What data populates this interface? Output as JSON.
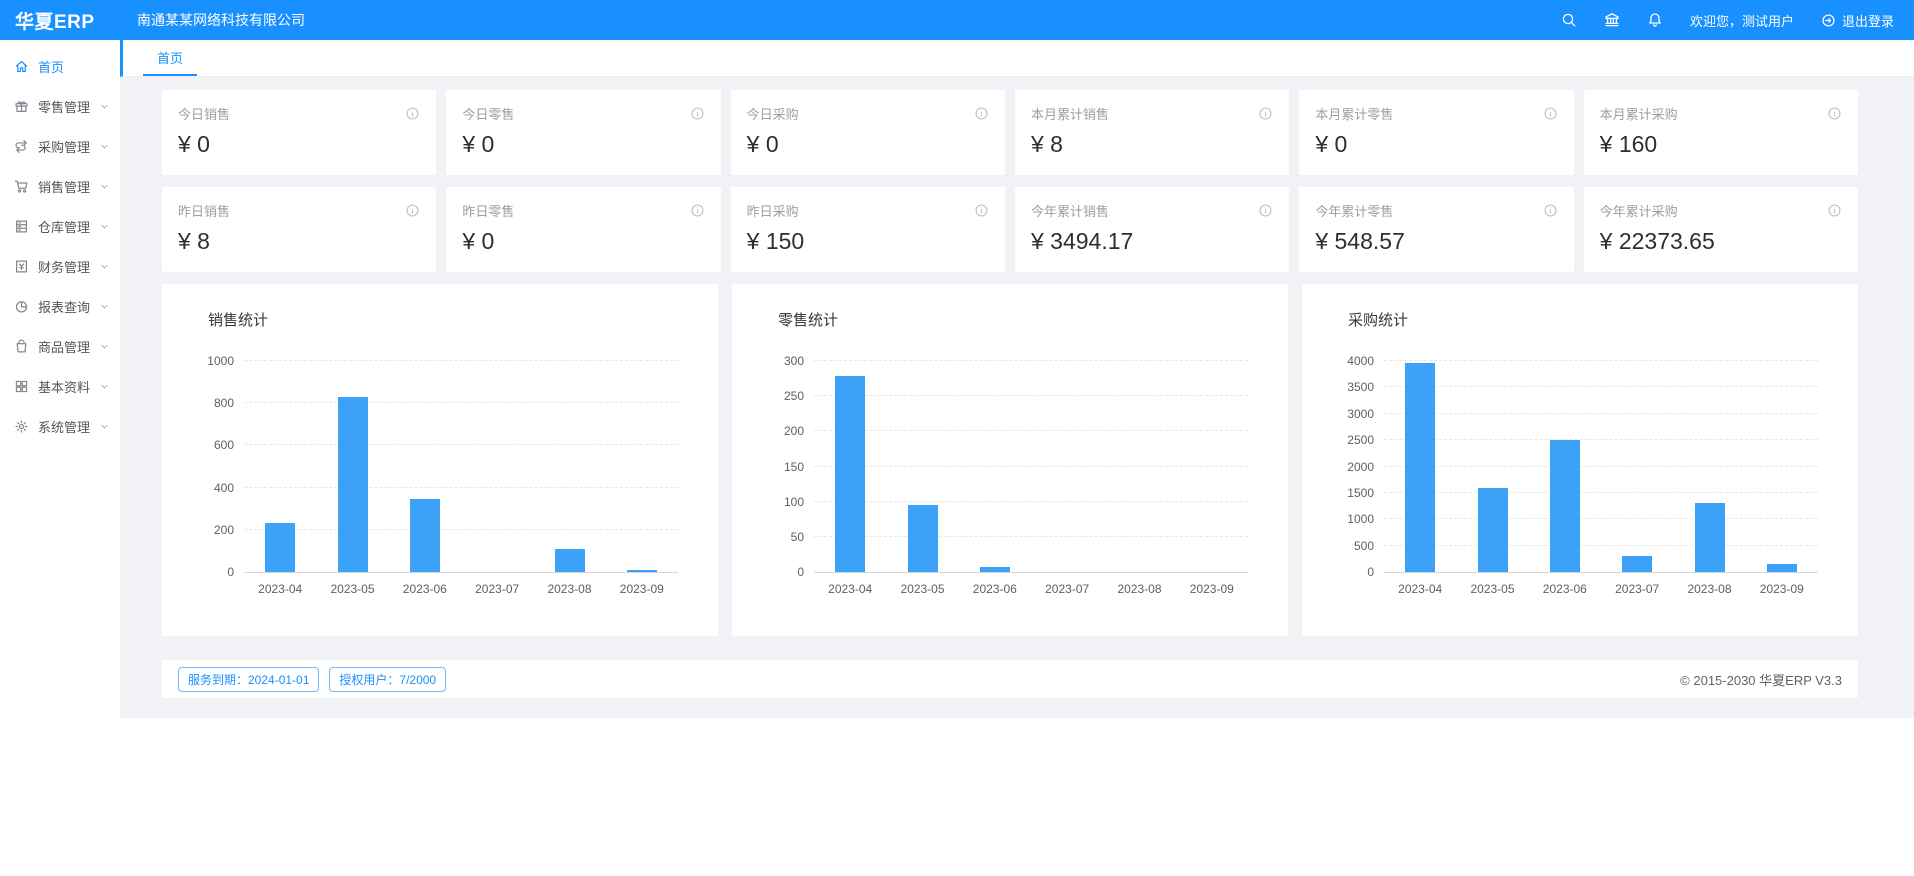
{
  "colors": {
    "primary": "#1890ff",
    "bar": "#3ca2f8",
    "background": "#f0f2f5"
  },
  "header": {
    "logo": "华夏ERP",
    "company": "南通某某网络科技有限公司",
    "welcome": "欢迎您，测试用户",
    "logout": "退出登录"
  },
  "sidebar": {
    "items": [
      {
        "id": "home",
        "icon": "home",
        "label": "首页",
        "active": true,
        "chevron": false
      },
      {
        "id": "retail",
        "icon": "gift",
        "label": "零售管理",
        "active": false,
        "chevron": true
      },
      {
        "id": "purchase",
        "icon": "swap",
        "label": "采购管理",
        "active": false,
        "chevron": true
      },
      {
        "id": "sales",
        "icon": "cart",
        "label": "销售管理",
        "active": false,
        "chevron": true
      },
      {
        "id": "warehouse",
        "icon": "warehouse",
        "label": "仓库管理",
        "active": false,
        "chevron": true
      },
      {
        "id": "finance",
        "icon": "finance",
        "label": "财务管理",
        "active": false,
        "chevron": true
      },
      {
        "id": "report",
        "icon": "report",
        "label": "报表查询",
        "active": false,
        "chevron": true
      },
      {
        "id": "goods",
        "icon": "goods",
        "label": "商品管理",
        "active": false,
        "chevron": true
      },
      {
        "id": "basic",
        "icon": "grid",
        "label": "基本资料",
        "active": false,
        "chevron": true
      },
      {
        "id": "system",
        "icon": "gear",
        "label": "系统管理",
        "active": false,
        "chevron": true
      }
    ]
  },
  "tabs": [
    {
      "label": "首页",
      "active": true
    }
  ],
  "stats": {
    "cards": [
      {
        "label": "今日销售",
        "value": "¥ 0"
      },
      {
        "label": "今日零售",
        "value": "¥ 0"
      },
      {
        "label": "今日采购",
        "value": "¥ 0"
      },
      {
        "label": "本月累计销售",
        "value": "¥ 8"
      },
      {
        "label": "本月累计零售",
        "value": "¥ 0"
      },
      {
        "label": "本月累计采购",
        "value": "¥ 160"
      },
      {
        "label": "昨日销售",
        "value": "¥ 8"
      },
      {
        "label": "昨日零售",
        "value": "¥ 0"
      },
      {
        "label": "昨日采购",
        "value": "¥ 150"
      },
      {
        "label": "今年累计销售",
        "value": "¥ 3494.17"
      },
      {
        "label": "今年累计零售",
        "value": "¥ 548.57"
      },
      {
        "label": "今年累计采购",
        "value": "¥ 22373.65"
      }
    ]
  },
  "chart_data": [
    {
      "id": "sales-stats",
      "type": "bar",
      "title": "销售统计",
      "categories": [
        "2023-04",
        "2023-05",
        "2023-06",
        "2023-07",
        "2023-08",
        "2023-09"
      ],
      "values": [
        230,
        825,
        345,
        0,
        110,
        10
      ],
      "xlabel": "",
      "ylabel": "",
      "ylim": [
        0,
        1000
      ],
      "yticks": [
        0,
        200,
        400,
        600,
        800,
        1000
      ],
      "grid": true,
      "legend": "none",
      "bar_color": "#3ca2f8"
    },
    {
      "id": "retail-stats",
      "type": "bar",
      "title": "零售统计",
      "categories": [
        "2023-04",
        "2023-05",
        "2023-06",
        "2023-07",
        "2023-08",
        "2023-09"
      ],
      "values": [
        277,
        95,
        7,
        0,
        0,
        0
      ],
      "xlabel": "",
      "ylabel": "",
      "ylim": [
        0,
        300
      ],
      "yticks": [
        0,
        50,
        100,
        150,
        200,
        250,
        300
      ],
      "grid": true,
      "legend": "none",
      "bar_color": "#3ca2f8"
    },
    {
      "id": "purchase-stats",
      "type": "bar",
      "title": "采购统计",
      "categories": [
        "2023-04",
        "2023-05",
        "2023-06",
        "2023-07",
        "2023-08",
        "2023-09"
      ],
      "values": [
        3950,
        1580,
        2500,
        300,
        1300,
        150
      ],
      "xlabel": "",
      "ylabel": "",
      "ylim": [
        0,
        4000
      ],
      "yticks": [
        0,
        500,
        1000,
        1500,
        2000,
        2500,
        3000,
        3500,
        4000
      ],
      "grid": true,
      "legend": "none",
      "bar_color": "#3ca2f8"
    }
  ],
  "footer": {
    "chips": [
      "服务到期：2024-01-01",
      "授权用户：7/2000"
    ],
    "copyright": "© 2015-2030 华夏ERP V3.3"
  }
}
